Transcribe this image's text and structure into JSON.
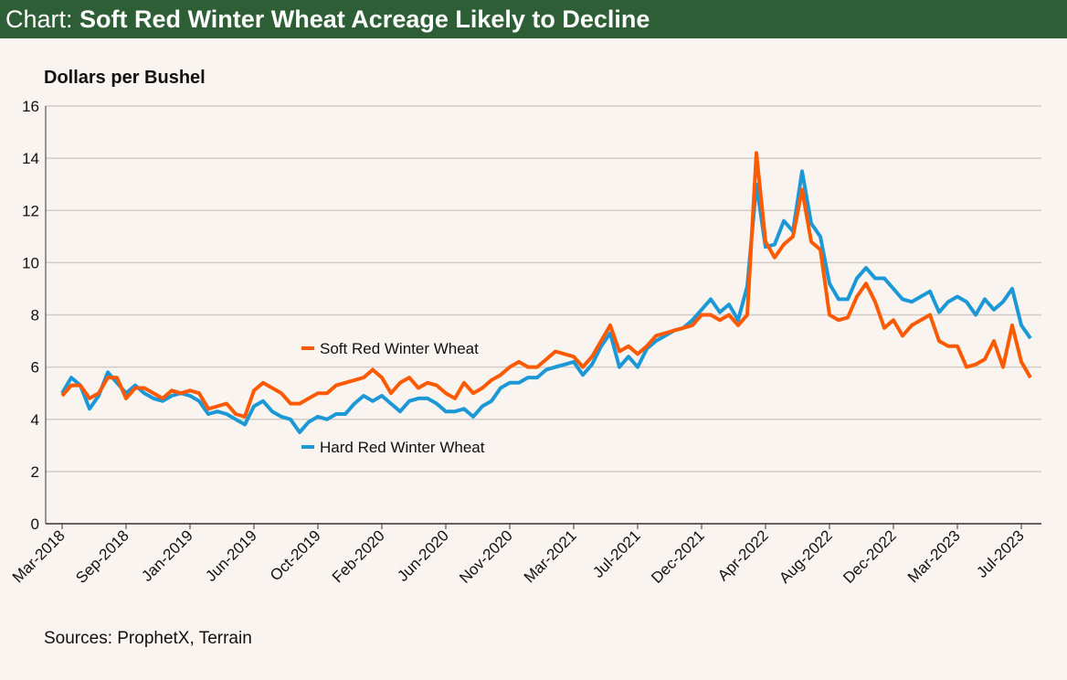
{
  "header": {
    "prefix": "Chart:",
    "title": "Soft Red Winter Wheat Acreage Likely to Decline"
  },
  "source": "Sources: ProphetX, Terrain",
  "chart_data": {
    "type": "line",
    "title": "Soft Red Winter Wheat Acreage Likely to Decline",
    "ylabel": "Dollars per Bushel",
    "xlabel": "",
    "ylim": [
      0,
      16
    ],
    "y_ticks": [
      0,
      2,
      4,
      6,
      8,
      10,
      12,
      14,
      16
    ],
    "x_ticks": [
      "Mar-2018",
      "Sep-2018",
      "Jan-2019",
      "Jun-2019",
      "Oct-2019",
      "Feb-2020",
      "Jun-2020",
      "Nov-2020",
      "Mar-2021",
      "Jul-2021",
      "Dec-2021",
      "Apr-2022",
      "Aug-2022",
      "Dec-2022",
      "Mar-2023",
      "Jul-2023"
    ],
    "grid": "horizontal",
    "legend": "inline",
    "colors": {
      "soft": "#ff5a00",
      "hard": "#1b98d5",
      "header": "#2e5e36"
    },
    "series": [
      {
        "name": "Soft Red Winter Wheat",
        "color": "#ff5a00",
        "values": [
          4.9,
          5.3,
          5.3,
          4.8,
          5.0,
          5.6,
          5.6,
          4.8,
          5.2,
          5.2,
          5.0,
          4.8,
          5.1,
          5.0,
          5.1,
          5.0,
          4.4,
          4.5,
          4.6,
          4.2,
          4.1,
          5.1,
          5.4,
          5.2,
          5.0,
          4.6,
          4.6,
          4.8,
          5.0,
          5.0,
          5.3,
          5.4,
          5.5,
          5.6,
          5.9,
          5.6,
          5.0,
          5.4,
          5.6,
          5.2,
          5.4,
          5.3,
          5.0,
          4.8,
          5.4,
          5.0,
          5.2,
          5.5,
          5.7,
          6.0,
          6.2,
          6.0,
          6.0,
          6.3,
          6.6,
          6.5,
          6.4,
          6.0,
          6.4,
          7.0,
          7.6,
          6.6,
          6.8,
          6.5,
          6.8,
          7.2,
          7.3,
          7.4,
          7.5,
          7.6,
          8.0,
          8.0,
          7.8,
          8.0,
          7.6,
          8.0,
          14.2,
          10.8,
          10.2,
          10.7,
          11.0,
          12.8,
          10.8,
          10.5,
          8.0,
          7.8,
          7.9,
          8.7,
          9.2,
          8.5,
          7.5,
          7.8,
          7.2,
          7.6,
          7.8,
          8.0,
          7.0,
          6.8,
          6.8,
          6.0,
          6.1,
          6.3,
          7.0,
          6.0,
          7.6,
          6.2,
          5.6
        ]
      },
      {
        "name": "Hard Red Winter Wheat",
        "color": "#1b98d5",
        "values": [
          5.0,
          5.6,
          5.3,
          4.4,
          4.9,
          5.8,
          5.4,
          5.0,
          5.3,
          5.0,
          4.8,
          4.7,
          4.9,
          5.0,
          4.9,
          4.7,
          4.2,
          4.3,
          4.2,
          4.0,
          3.8,
          4.5,
          4.7,
          4.3,
          4.1,
          4.0,
          3.5,
          3.9,
          4.1,
          4.0,
          4.2,
          4.2,
          4.6,
          4.9,
          4.7,
          4.9,
          4.6,
          4.3,
          4.7,
          4.8,
          4.8,
          4.6,
          4.3,
          4.3,
          4.4,
          4.1,
          4.5,
          4.7,
          5.2,
          5.4,
          5.4,
          5.6,
          5.6,
          5.9,
          6.0,
          6.1,
          6.2,
          5.7,
          6.1,
          6.8,
          7.3,
          6.0,
          6.4,
          6.0,
          6.7,
          7.0,
          7.2,
          7.4,
          7.5,
          7.8,
          8.2,
          8.6,
          8.1,
          8.4,
          7.8,
          9.1,
          13.0,
          10.6,
          10.7,
          11.6,
          11.2,
          13.5,
          11.5,
          11.0,
          9.2,
          8.6,
          8.6,
          9.4,
          9.8,
          9.4,
          9.4,
          9.0,
          8.6,
          8.5,
          8.7,
          8.9,
          8.1,
          8.5,
          8.7,
          8.5,
          8.0,
          8.6,
          8.2,
          8.5,
          9.0,
          7.6,
          7.1
        ]
      }
    ]
  }
}
